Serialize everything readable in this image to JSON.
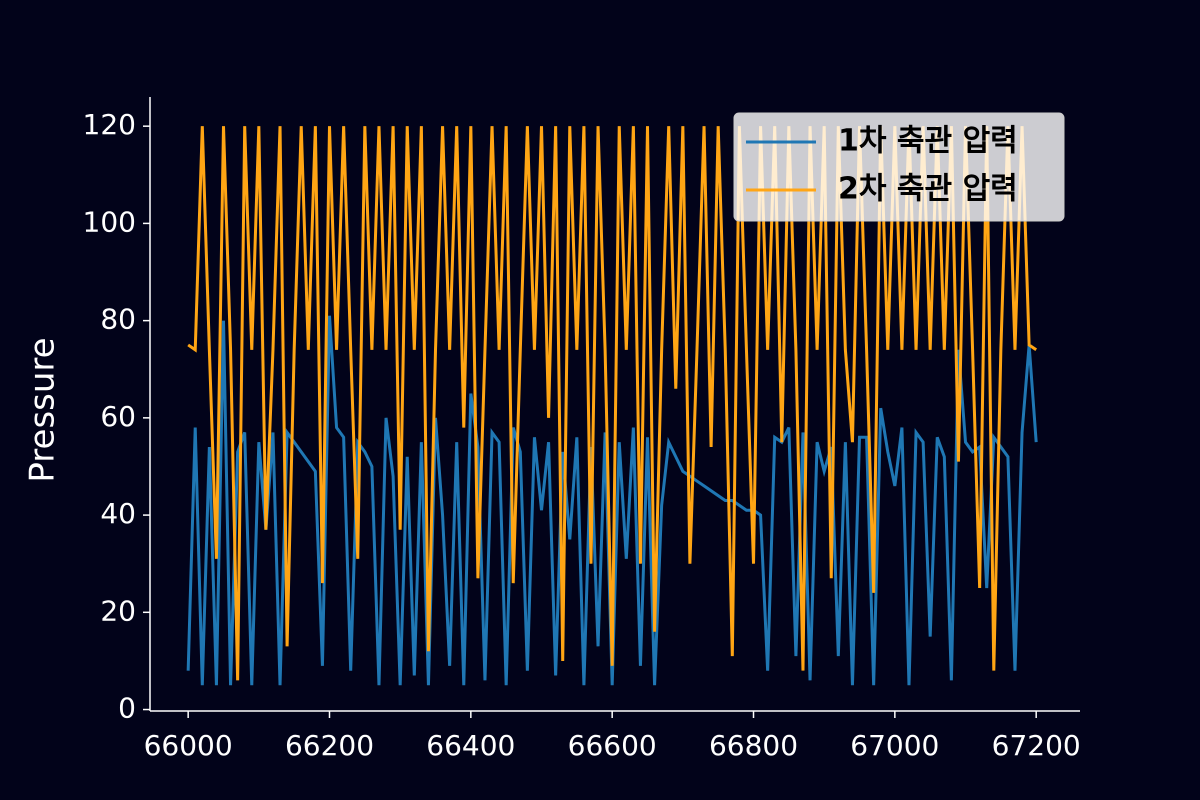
{
  "chart_data": {
    "type": "line",
    "y_label": "Pressure",
    "x": [
      66000,
      66010,
      66020,
      66030,
      66040,
      66050,
      66060,
      66070,
      66080,
      66090,
      66100,
      66110,
      66120,
      66130,
      66140,
      66150,
      66160,
      66170,
      66180,
      66190,
      66200,
      66210,
      66220,
      66230,
      66240,
      66250,
      66260,
      66270,
      66280,
      66290,
      66300,
      66310,
      66320,
      66330,
      66340,
      66350,
      66360,
      66370,
      66380,
      66390,
      66400,
      66410,
      66420,
      66430,
      66440,
      66450,
      66460,
      66470,
      66480,
      66490,
      66500,
      66510,
      66520,
      66530,
      66540,
      66550,
      66560,
      66570,
      66580,
      66590,
      66600,
      66610,
      66620,
      66630,
      66640,
      66650,
      66660,
      66670,
      66680,
      66690,
      66700,
      66710,
      66720,
      66730,
      66740,
      66750,
      66760,
      66770,
      66780,
      66790,
      66800,
      66810,
      66820,
      66830,
      66840,
      66850,
      66860,
      66870,
      66880,
      66890,
      66900,
      66910,
      66920,
      66930,
      66940,
      66950,
      66960,
      66970,
      66980,
      66990,
      67000,
      67010,
      67020,
      67030,
      67040,
      67050,
      67060,
      67070,
      67080,
      67090,
      67100,
      67110,
      67120,
      67130,
      67140,
      67150,
      67160,
      67170,
      67180,
      67190,
      67200
    ],
    "series": [
      {
        "name": "1차 축관 압력",
        "color": "#1f77b4",
        "values": [
          8,
          58,
          5,
          54,
          5,
          80,
          5,
          53,
          57,
          5,
          55,
          37,
          57,
          5,
          57,
          55,
          53,
          51,
          49,
          9,
          81,
          58,
          56,
          8,
          55,
          53,
          50,
          5,
          60,
          48,
          5,
          52,
          7,
          55,
          5,
          60,
          40,
          9,
          55,
          5,
          65,
          54,
          6,
          57,
          55,
          5,
          58,
          53,
          8,
          56,
          41,
          55,
          7,
          53,
          35,
          56,
          5,
          54,
          13,
          57,
          5,
          55,
          31,
          58,
          9,
          56,
          5,
          42,
          55,
          52,
          49,
          48,
          47,
          46,
          45,
          44,
          43,
          43,
          42,
          41,
          41,
          40,
          8,
          56,
          55,
          58,
          11,
          57,
          6,
          55,
          49,
          54,
          11,
          55,
          5,
          56,
          56,
          5,
          62,
          53,
          46,
          58,
          5,
          57,
          55,
          15,
          56,
          52,
          6,
          74,
          55,
          53,
          54,
          25,
          56,
          54,
          52,
          8,
          57,
          75,
          55
        ]
      },
      {
        "name": "2차 축관 압력",
        "color": "#ffa514",
        "values": [
          75,
          74,
          120,
          74,
          31,
          120,
          74,
          6,
          120,
          74,
          120,
          37,
          74,
          120,
          13,
          74,
          120,
          74,
          120,
          26,
          120,
          74,
          120,
          74,
          31,
          120,
          74,
          120,
          74,
          120,
          37,
          120,
          74,
          120,
          12,
          74,
          120,
          74,
          120,
          58,
          120,
          27,
          74,
          120,
          74,
          120,
          26,
          74,
          120,
          74,
          120,
          60,
          120,
          10,
          120,
          74,
          120,
          30,
          120,
          74,
          9,
          120,
          74,
          120,
          30,
          120,
          16,
          74,
          120,
          66,
          120,
          30,
          74,
          120,
          54,
          120,
          74,
          11,
          120,
          74,
          30,
          120,
          74,
          120,
          55,
          120,
          74,
          8,
          120,
          74,
          120,
          27,
          120,
          74,
          55,
          120,
          74,
          24,
          120,
          74,
          120,
          74,
          120,
          74,
          120,
          74,
          120,
          74,
          120,
          51,
          120,
          74,
          25,
          120,
          8,
          74,
          120,
          74,
          120,
          75,
          74
        ]
      }
    ],
    "xlim": [
      65946,
      67262
    ],
    "ylim": [
      -0.3,
      126
    ],
    "xticks": [
      66000,
      66200,
      66400,
      66600,
      66800,
      67000,
      67200
    ],
    "yticks": [
      0,
      20,
      40,
      60,
      80,
      100,
      120
    ],
    "legend": "upper right"
  }
}
